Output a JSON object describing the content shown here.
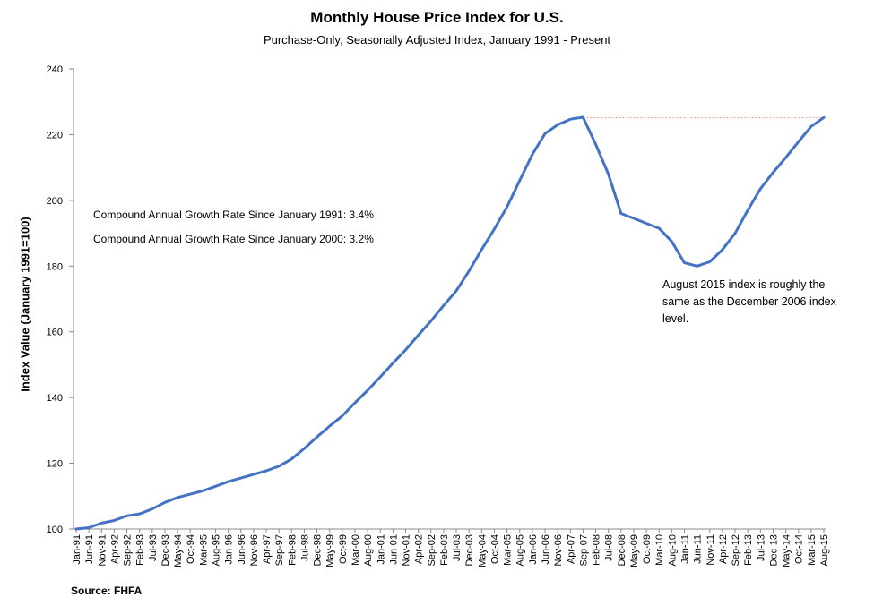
{
  "chart_data": {
    "type": "line",
    "title": "Monthly House Price Index for U.S.",
    "subtitle": "Purchase-Only, Seasonally Adjusted Index, January 1991 - Present",
    "xlabel": "",
    "ylabel": "Index Value (January 1991=100)",
    "ylim": [
      100,
      240
    ],
    "yticks": [
      100,
      120,
      140,
      160,
      180,
      200,
      220,
      240
    ],
    "grid": false,
    "legend": "none",
    "xtick_labels": [
      "Jan-91",
      "Jun-91",
      "Nov-91",
      "Apr-92",
      "Sep-92",
      "Feb-93",
      "Jul-93",
      "Dec-93",
      "May-94",
      "Oct-94",
      "Mar-95",
      "Aug-95",
      "Jan-96",
      "Jun-96",
      "Nov-96",
      "Apr-97",
      "Sep-97",
      "Feb-98",
      "Jul-98",
      "Dec-98",
      "May-99",
      "Oct-99",
      "Mar-00",
      "Aug-00",
      "Jan-01",
      "Jun-01",
      "Nov-01",
      "Apr-02",
      "Sep-02",
      "Feb-03",
      "Jul-03",
      "Dec-03",
      "May-04",
      "Oct-04",
      "Mar-05",
      "Aug-05",
      "Jan-06",
      "Jun-06",
      "Nov-06",
      "Apr-07",
      "Sep-07",
      "Feb-08",
      "Jul-08",
      "Dec-08",
      "May-09",
      "Oct-09",
      "Mar-10",
      "Aug-10",
      "Jan-11",
      "Jun-11",
      "Nov-11",
      "Apr-12",
      "Sep-12",
      "Feb-13",
      "Jul-13",
      "Dec-13",
      "May-14",
      "Oct-14",
      "Mar-15",
      "Aug-15"
    ],
    "series": [
      {
        "values": [
          100.0,
          100.4,
          101.8,
          102.6,
          104.0,
          104.6,
          106.1,
          108.1,
          109.6,
          110.6,
          111.6,
          113.0,
          114.4,
          115.5,
          116.6,
          117.7,
          119.1,
          121.3,
          124.5,
          128.0,
          131.3,
          134.4,
          138.4,
          142.2,
          146.3,
          150.5,
          154.5,
          159.0,
          163.3,
          168.0,
          172.5,
          178.5,
          185.0,
          191.3,
          198.0,
          206.0,
          214.0,
          220.3,
          223.0,
          224.7,
          225.3,
          217.0,
          208.0,
          196.0,
          194.5,
          193.0,
          191.5,
          187.5,
          181.0,
          180.0,
          181.3,
          185.0,
          190.0,
          197.0,
          203.5,
          208.5,
          213.0,
          217.8,
          222.5,
          225.2
        ],
        "color": "#4472C4"
      }
    ],
    "reference_line": {
      "value": 225.2,
      "color": "#E6A08C"
    },
    "annotations": {
      "cagr_1991": "Compound Annual Growth Rate Since January 1991:  3.4%",
      "cagr_2000": "Compound Annual Growth Rate Since January 2000:  3.2%",
      "note": "August 2015 index is roughly the same as the December 2006 index level."
    },
    "source": "Source: FHFA"
  }
}
